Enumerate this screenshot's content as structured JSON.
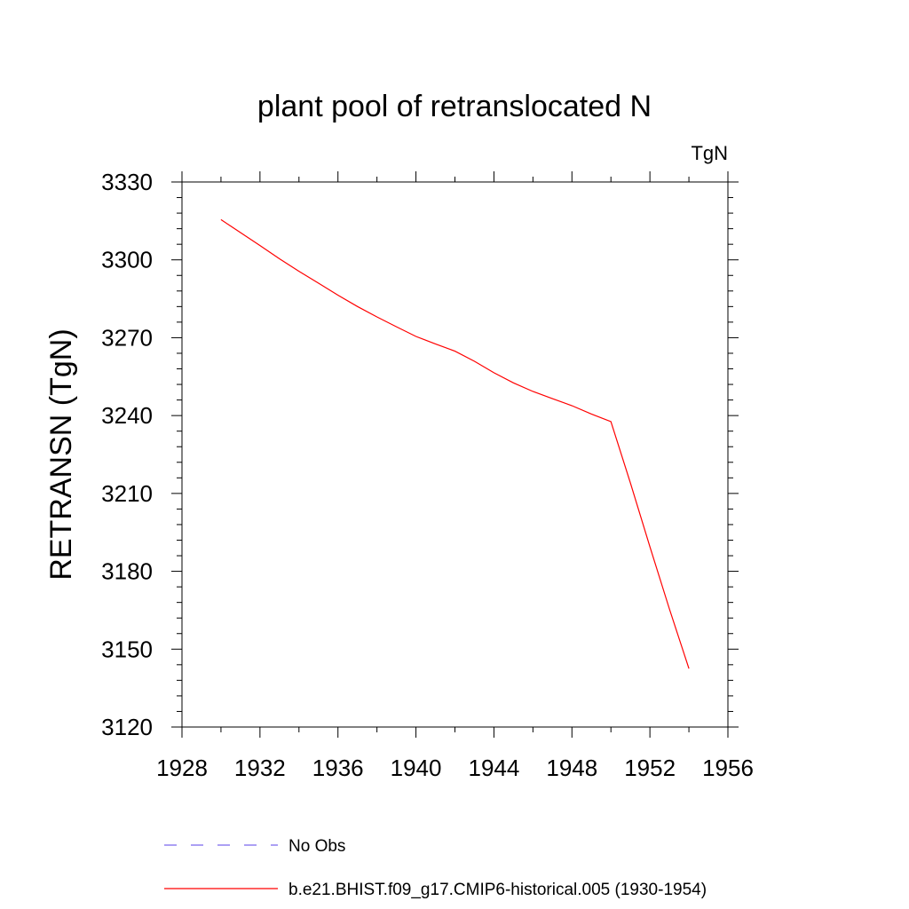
{
  "chart_data": {
    "type": "line",
    "title": "plant pool of retranslocated N",
    "units": "TgN",
    "xlabel": "",
    "ylabel": "RETRANSN  (TgN)",
    "xlim": [
      1928,
      1956
    ],
    "ylim": [
      3120,
      3330
    ],
    "xticks": [
      1928,
      1932,
      1936,
      1940,
      1944,
      1948,
      1952,
      1956
    ],
    "yticks": [
      3120,
      3150,
      3180,
      3210,
      3240,
      3270,
      3300,
      3330
    ],
    "grid": false,
    "legend_position": "bottom",
    "series": [
      {
        "name": "No Obs",
        "color": "#7b68ee",
        "dash": "dashed",
        "x": [],
        "y": []
      },
      {
        "name": "b.e21.BHIST.f09_g17.CMIP6-historical.005 (1930-1954)",
        "color": "#ff0000",
        "dash": "solid",
        "x": [
          1930,
          1931,
          1932,
          1933,
          1934,
          1935,
          1936,
          1937,
          1938,
          1939,
          1940,
          1941,
          1942,
          1943,
          1944,
          1945,
          1946,
          1947,
          1948,
          1949,
          1950,
          1951,
          1952,
          1953,
          1954
        ],
        "y": [
          3315.5,
          3310.5,
          3305.5,
          3300.4,
          3295.6,
          3291.0,
          3286.4,
          3282.0,
          3278.0,
          3274.2,
          3270.5,
          3267.6,
          3264.8,
          3260.9,
          3256.5,
          3252.6,
          3249.3,
          3246.5,
          3243.8,
          3240.6,
          3237.7,
          3214.0,
          3189.5,
          3165.5,
          3142.5
        ]
      }
    ]
  }
}
